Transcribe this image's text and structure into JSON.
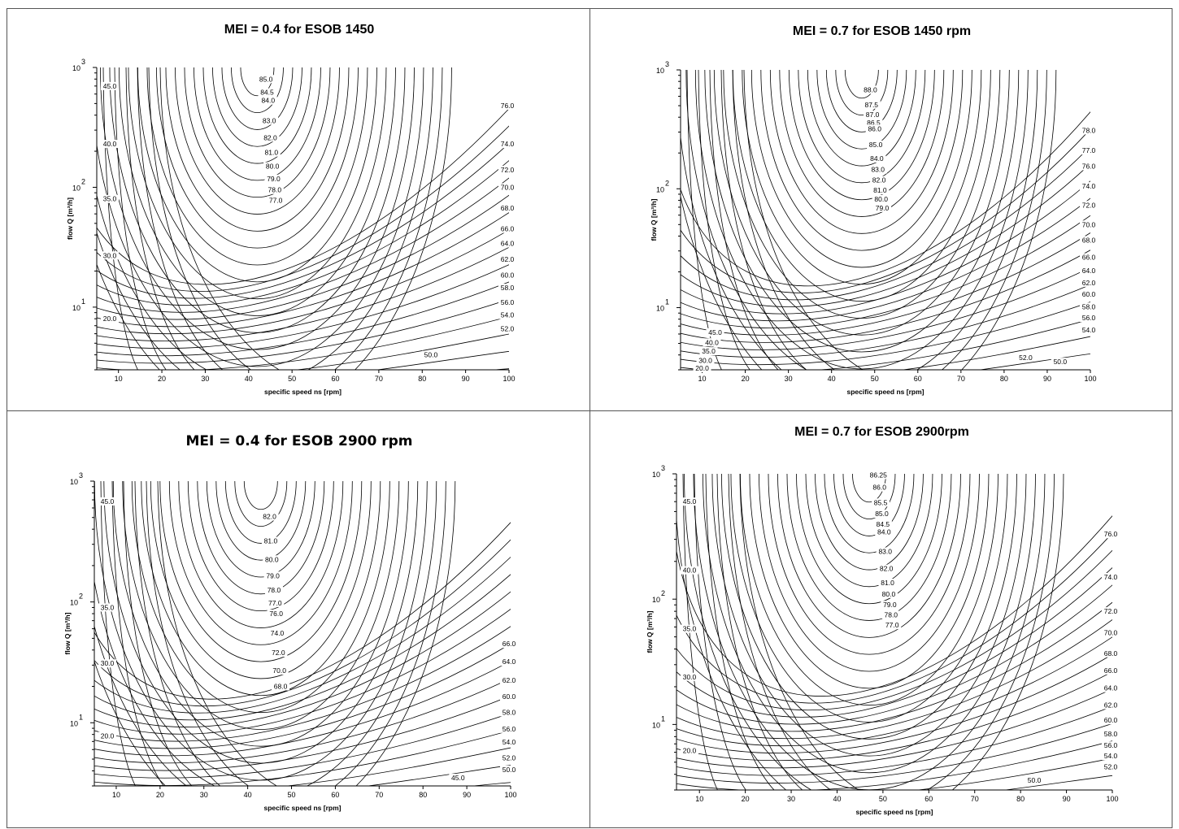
{
  "chart_data": [
    {
      "type": "contour",
      "title": "MEI = 0.4 for ESOB 1450",
      "xlabel": "specific speed ns [rpm]",
      "ylabel": "flow Q [m³/h]",
      "xlim": [
        5,
        100
      ],
      "ylim": [
        3,
        1000
      ],
      "yscale": "log",
      "x_ticks": [
        10,
        20,
        30,
        40,
        50,
        60,
        70,
        80,
        90,
        100
      ],
      "y_ticks": [
        {
          "base": "10",
          "exp": "1",
          "value": 10
        },
        {
          "base": "10",
          "exp": "2",
          "value": 100
        },
        {
          "base": "10",
          "exp": "3",
          "value": 1000
        }
      ],
      "optimum": {
        "ns": 42,
        "q": 1000
      },
      "left_labels": [
        {
          "text": "45.0",
          "q": 700
        },
        {
          "text": "40.0",
          "q": 230
        },
        {
          "text": "35.0",
          "q": 80
        },
        {
          "text": "30.0",
          "q": 27
        },
        {
          "text": "20.0",
          "q": 8
        }
      ],
      "center_labels": [
        {
          "text": "85.0",
          "q": 800
        },
        {
          "text": "84.5",
          "q": 620
        },
        {
          "text": "84.0",
          "q": 530
        },
        {
          "text": "83.0",
          "q": 360
        },
        {
          "text": "82.0",
          "q": 260
        },
        {
          "text": "81.0",
          "q": 195
        },
        {
          "text": "80.0",
          "q": 150
        },
        {
          "text": "79.0",
          "q": 118
        },
        {
          "text": "78.0",
          "q": 95
        },
        {
          "text": "77.0",
          "q": 78
        }
      ],
      "right_labels": [
        {
          "text": "76.0",
          "q": 480
        },
        {
          "text": "74.0",
          "q": 230
        },
        {
          "text": "72.0",
          "q": 140
        },
        {
          "text": "70.0",
          "q": 100
        },
        {
          "text": "68.0",
          "q": 67
        },
        {
          "text": "66.0",
          "q": 45
        },
        {
          "text": "64.0",
          "q": 34
        },
        {
          "text": "62.0",
          "q": 25
        },
        {
          "text": "60.0",
          "q": 18.5
        },
        {
          "text": "58.0",
          "q": 14.5
        },
        {
          "text": "56.0",
          "q": 11
        },
        {
          "text": "54.0",
          "q": 8.6
        },
        {
          "text": "52.0",
          "q": 6.6
        }
      ],
      "bottom_labels": [
        {
          "text": "50.0",
          "ns": 82,
          "q": 4
        }
      ]
    },
    {
      "type": "contour",
      "title": "MEI = 0.7 for ESOB 1450 rpm",
      "xlabel": "specific speed ns [rpm]",
      "ylabel": "flow Q [m³/h]",
      "xlim": [
        5,
        100
      ],
      "ylim": [
        3,
        1000
      ],
      "yscale": "log",
      "x_ticks": [
        10,
        20,
        30,
        40,
        50,
        60,
        70,
        80,
        90,
        100
      ],
      "y_ticks": [
        {
          "base": "10",
          "exp": "1",
          "value": 10
        },
        {
          "base": "10",
          "exp": "2",
          "value": 100
        },
        {
          "base": "10",
          "exp": "3",
          "value": 1000
        }
      ],
      "optimum": {
        "ns": 47,
        "q": 1000
      },
      "left_labels": [
        {
          "text": "45.0",
          "q": 6.2
        },
        {
          "text": "40.0",
          "q": 5.1
        },
        {
          "text": "35.0",
          "q": 4.3
        },
        {
          "text": "30.0",
          "q": 3.6
        },
        {
          "text": "20.0",
          "q": 3.1
        }
      ],
      "center_labels": [
        {
          "text": "88.0",
          "q": 680
        },
        {
          "text": "87.5",
          "q": 510
        },
        {
          "text": "87.0",
          "q": 420
        },
        {
          "text": "86.5",
          "q": 360
        },
        {
          "text": "86.0",
          "q": 320
        },
        {
          "text": "85.0",
          "q": 235
        },
        {
          "text": "84.0",
          "q": 180
        },
        {
          "text": "83.0",
          "q": 145
        },
        {
          "text": "82.0",
          "q": 118
        },
        {
          "text": "81.0",
          "q": 97
        },
        {
          "text": "80.0",
          "q": 82
        },
        {
          "text": "79.0",
          "q": 69
        }
      ],
      "right_labels": [
        {
          "text": "78.0",
          "q": 310
        },
        {
          "text": "77.0",
          "q": 210
        },
        {
          "text": "76.0",
          "q": 155
        },
        {
          "text": "74.0",
          "q": 105
        },
        {
          "text": "72.0",
          "q": 73
        },
        {
          "text": "70.0",
          "q": 50
        },
        {
          "text": "68.0",
          "q": 37
        },
        {
          "text": "66.0",
          "q": 26.5
        },
        {
          "text": "64.0",
          "q": 20.5
        },
        {
          "text": "62.0",
          "q": 16.2
        },
        {
          "text": "60.0",
          "q": 13
        },
        {
          "text": "58.0",
          "q": 10.2
        },
        {
          "text": "56.0",
          "q": 8.2
        },
        {
          "text": "54.0",
          "q": 6.5
        }
      ],
      "bottom_labels": [
        {
          "text": "52.0",
          "ns": 85,
          "q": 3.8
        },
        {
          "text": "50.0",
          "ns": 93,
          "q": 3.5
        }
      ]
    },
    {
      "type": "contour",
      "title": "MEI = 0.4 for ESOB 2900 rpm",
      "xlabel": "specific speed ns [rpm]",
      "ylabel": "flow Q [m³/h]",
      "xlim": [
        5,
        100
      ],
      "ylim": [
        3,
        1000
      ],
      "yscale": "log",
      "x_ticks": [
        10,
        20,
        30,
        40,
        50,
        60,
        70,
        80,
        90,
        100
      ],
      "y_ticks": [
        {
          "base": "10",
          "exp": "1",
          "value": 10
        },
        {
          "base": "10",
          "exp": "2",
          "value": 100
        },
        {
          "base": "10",
          "exp": "3",
          "value": 1000
        }
      ],
      "optimum": {
        "ns": 43,
        "q": 1000
      },
      "left_labels": [
        {
          "text": "45.0",
          "q": 680
        },
        {
          "text": "35.0",
          "q": 90
        },
        {
          "text": "30.0",
          "q": 31
        },
        {
          "text": "20.0",
          "q": 7.8
        }
      ],
      "center_labels": [
        {
          "text": "82.0",
          "q": 510
        },
        {
          "text": "81.0",
          "q": 320
        },
        {
          "text": "80.0",
          "q": 225
        },
        {
          "text": "79.0",
          "q": 165
        },
        {
          "text": "78.0",
          "q": 125
        },
        {
          "text": "77.0",
          "q": 98
        },
        {
          "text": "76.0",
          "q": 80
        },
        {
          "text": "74.0",
          "q": 55
        },
        {
          "text": "72.0",
          "q": 38
        },
        {
          "text": "70.0",
          "q": 27
        },
        {
          "text": "68.0",
          "q": 20
        }
      ],
      "right_labels": [
        {
          "text": "66.0",
          "q": 45
        },
        {
          "text": "64.0",
          "q": 32
        },
        {
          "text": "62.0",
          "q": 22.5
        },
        {
          "text": "60.0",
          "q": 16.5
        },
        {
          "text": "58.0",
          "q": 12.2
        },
        {
          "text": "56.0",
          "q": 8.9
        },
        {
          "text": "54.0",
          "q": 6.9
        },
        {
          "text": "52.0",
          "q": 5.1
        },
        {
          "text": "50.0",
          "q": 4.1
        }
      ],
      "bottom_labels": [
        {
          "text": "45.0",
          "ns": 88,
          "q": 3.5
        }
      ]
    },
    {
      "type": "contour",
      "title": "MEI = 0.7 for ESOB 2900rpm",
      "xlabel": "specific speed ns [rpm]",
      "ylabel": "flow Q [m³/h]",
      "xlim": [
        5,
        100
      ],
      "ylim": [
        3,
        1000
      ],
      "yscale": "log",
      "x_ticks": [
        10,
        20,
        30,
        40,
        50,
        60,
        70,
        80,
        90,
        100
      ],
      "y_ticks": [
        {
          "base": "10",
          "exp": "1",
          "value": 10
        },
        {
          "base": "10",
          "exp": "2",
          "value": 100
        },
        {
          "base": "10",
          "exp": "3",
          "value": 1000
        }
      ],
      "optimum": {
        "ns": 47,
        "q": 1000
      },
      "left_labels": [
        {
          "text": "45.0",
          "q": 600
        },
        {
          "text": "40.0",
          "q": 170
        },
        {
          "text": "35.0",
          "q": 58
        },
        {
          "text": "30.0",
          "q": 24
        },
        {
          "text": "20.0",
          "q": 6.2
        }
      ],
      "center_labels": [
        {
          "text": "86.25",
          "q": 980
        },
        {
          "text": "86.0",
          "q": 780
        },
        {
          "text": "85.5",
          "q": 590
        },
        {
          "text": "85.0",
          "q": 480
        },
        {
          "text": "84.5",
          "q": 395
        },
        {
          "text": "84.0",
          "q": 345
        },
        {
          "text": "83.0",
          "q": 240
        },
        {
          "text": "82.0",
          "q": 175
        },
        {
          "text": "81.0",
          "q": 135
        },
        {
          "text": "80.0",
          "q": 110
        },
        {
          "text": "79.0",
          "q": 90
        },
        {
          "text": "78.0",
          "q": 75
        },
        {
          "text": "77.0",
          "q": 62
        }
      ],
      "right_labels": [
        {
          "text": "76.0",
          "q": 330
        },
        {
          "text": "74.0",
          "q": 150
        },
        {
          "text": "72.0",
          "q": 80
        },
        {
          "text": "70.0",
          "q": 54
        },
        {
          "text": "68.0",
          "q": 37
        },
        {
          "text": "66.0",
          "q": 27
        },
        {
          "text": "64.0",
          "q": 19.5
        },
        {
          "text": "62.0",
          "q": 14.3
        },
        {
          "text": "60.0",
          "q": 10.8
        },
        {
          "text": "58.0",
          "q": 8.4
        },
        {
          "text": "56.0",
          "q": 6.8
        },
        {
          "text": "54.0",
          "q": 5.6
        },
        {
          "text": "52.0",
          "q": 4.6
        }
      ],
      "bottom_labels": [
        {
          "text": "50.0",
          "ns": 83,
          "q": 3.6
        }
      ]
    }
  ]
}
